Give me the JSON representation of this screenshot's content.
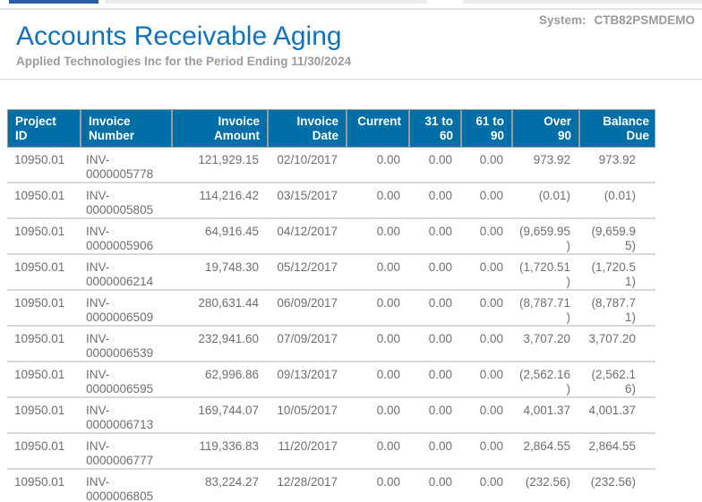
{
  "page": {
    "title": "Accounts Receivable Aging",
    "subtitle": "Applied Technologies Inc for the Period Ending 11/30/2024",
    "system_label": "System:",
    "system_value": "CTB82PSMDEMO"
  },
  "colors": {
    "accent_tab_bar": "#2A5BA6",
    "title_blue": "#1272B8",
    "table_header_bg": "#006FA8",
    "table_header_text": "#FFFFFF",
    "body_text": "#6E6E6E",
    "muted_text": "#9B9B9B",
    "row_divider": "#DADADA",
    "header_cell_border": "#9B9B9B"
  },
  "table": {
    "columns": [
      {
        "label": "Project\nID"
      },
      {
        "label": "Invoice\nNumber"
      },
      {
        "label": "Invoice\nAmount"
      },
      {
        "label": "Invoice\nDate"
      },
      {
        "label": "Current"
      },
      {
        "label": "31 to\n60"
      },
      {
        "label": "61 to\n90"
      },
      {
        "label": "Over\n90"
      },
      {
        "label": "Balance\nDue"
      }
    ],
    "rows": [
      [
        "10950.01",
        "INV-0000005778",
        "121,929.15",
        "02/10/2017",
        "0.00",
        "0.00",
        "0.00",
        "973.92",
        "973.92"
      ],
      [
        "10950.01",
        "INV-0000005805",
        "114,216.42",
        "03/15/2017",
        "0.00",
        "0.00",
        "0.00",
        "(0.01)",
        "(0.01)"
      ],
      [
        "10950.01",
        "INV-0000005906",
        "64,916.45",
        "04/12/2017",
        "0.00",
        "0.00",
        "0.00",
        "(9,659.95)",
        "(9,659.95)"
      ],
      [
        "10950.01",
        "INV-0000006214",
        "19,748.30",
        "05/12/2017",
        "0.00",
        "0.00",
        "0.00",
        "(1,720.51)",
        "(1,720.51)"
      ],
      [
        "10950.01",
        "INV-0000006509",
        "280,631.44",
        "06/09/2017",
        "0.00",
        "0.00",
        "0.00",
        "(8,787.71)",
        "(8,787.71)"
      ],
      [
        "10950.01",
        "INV-0000006539",
        "232,941.60",
        "07/09/2017",
        "0.00",
        "0.00",
        "0.00",
        "3,707.20",
        "3,707.20"
      ],
      [
        "10950.01",
        "INV-0000006595",
        "62,996.86",
        "09/13/2017",
        "0.00",
        "0.00",
        "0.00",
        "(2,562.16)",
        "(2,562.16)"
      ],
      [
        "10950.01",
        "INV-0000006713",
        "169,744.07",
        "10/05/2017",
        "0.00",
        "0.00",
        "0.00",
        "4,001.37",
        "4,001.37"
      ],
      [
        "10950.01",
        "INV-0000006777",
        "119,336.83",
        "11/20/2017",
        "0.00",
        "0.00",
        "0.00",
        "2,864.55",
        "2,864.55"
      ],
      [
        "10950.01",
        "INV-0000006805",
        "83,224.27",
        "12/28/2017",
        "0.00",
        "0.00",
        "0.00",
        "(232.56)",
        "(232.56)"
      ]
    ]
  }
}
